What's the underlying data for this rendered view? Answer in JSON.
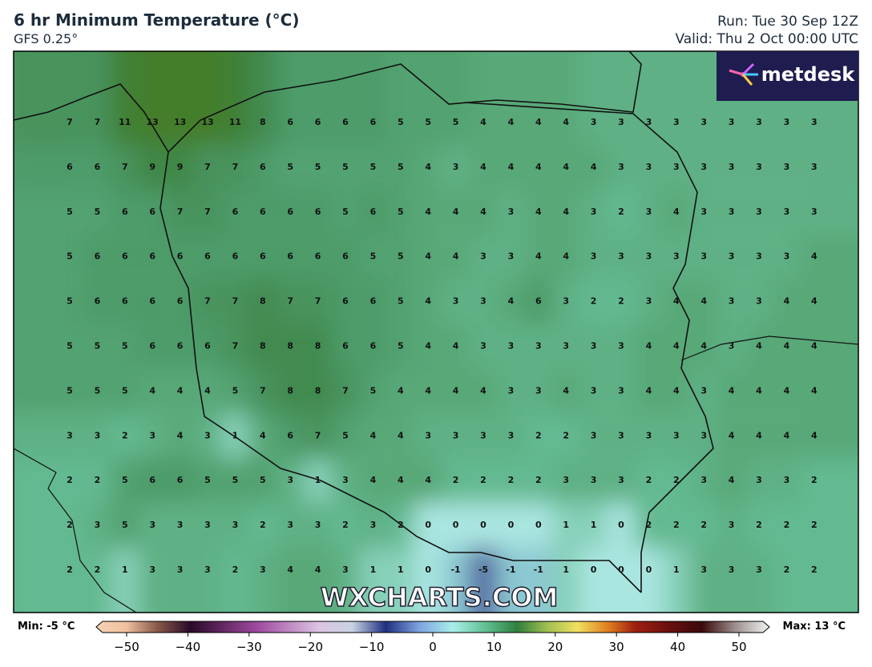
{
  "header": {
    "title": "6 hr Minimum Temperature (°C)",
    "model": "GFS 0.25°",
    "run": "Run: Tue 30 Sep 12Z",
    "valid": "Valid: Thu 2 Oct 00:00 UTC",
    "logo": "metdesk"
  },
  "watermark": "WXCHARTS.COM",
  "grid_values": [
    [
      7,
      7,
      11,
      13,
      13,
      13,
      11,
      8,
      6,
      6,
      6,
      6,
      5,
      5,
      5,
      4,
      4,
      4,
      4,
      3,
      3,
      3,
      3,
      3,
      3,
      3,
      3,
      3
    ],
    [
      6,
      6,
      7,
      9,
      9,
      7,
      7,
      6,
      5,
      5,
      5,
      5,
      5,
      4,
      3,
      4,
      4,
      4,
      4,
      4,
      3,
      3,
      3,
      3,
      3,
      3,
      3,
      3
    ],
    [
      5,
      5,
      6,
      6,
      7,
      7,
      6,
      6,
      6,
      6,
      5,
      6,
      5,
      4,
      4,
      4,
      3,
      4,
      4,
      3,
      2,
      3,
      4,
      3,
      3,
      3,
      3,
      3
    ],
    [
      5,
      6,
      6,
      6,
      6,
      6,
      6,
      6,
      6,
      6,
      6,
      5,
      5,
      4,
      4,
      3,
      3,
      4,
      4,
      3,
      3,
      3,
      3,
      3,
      3,
      3,
      3,
      4
    ],
    [
      5,
      6,
      6,
      6,
      6,
      7,
      7,
      8,
      7,
      7,
      6,
      6,
      5,
      4,
      3,
      3,
      4,
      6,
      3,
      2,
      2,
      3,
      4,
      4,
      3,
      3,
      4,
      4
    ],
    [
      5,
      5,
      5,
      6,
      6,
      6,
      7,
      8,
      8,
      8,
      6,
      6,
      5,
      4,
      4,
      3,
      3,
      3,
      3,
      3,
      3,
      4,
      4,
      4,
      3,
      4,
      4,
      4
    ],
    [
      5,
      5,
      5,
      4,
      4,
      4,
      5,
      7,
      8,
      8,
      7,
      5,
      4,
      4,
      4,
      4,
      3,
      3,
      4,
      3,
      3,
      4,
      4,
      3,
      4,
      4,
      4,
      4
    ],
    [
      3,
      3,
      2,
      3,
      4,
      3,
      1,
      4,
      6,
      7,
      5,
      4,
      4,
      3,
      3,
      3,
      3,
      2,
      2,
      3,
      3,
      3,
      3,
      3,
      4,
      4,
      4,
      4
    ],
    [
      2,
      2,
      5,
      6,
      6,
      5,
      5,
      5,
      3,
      1,
      3,
      4,
      4,
      4,
      2,
      2,
      2,
      2,
      3,
      3,
      3,
      2,
      2,
      3,
      4,
      3,
      3,
      2
    ],
    [
      2,
      3,
      5,
      3,
      3,
      3,
      3,
      2,
      3,
      3,
      2,
      3,
      2,
      0,
      0,
      0,
      0,
      0,
      1,
      1,
      0,
      2,
      2,
      2,
      3,
      2,
      2,
      2
    ],
    [
      2,
      2,
      1,
      3,
      3,
      3,
      2,
      3,
      4,
      4,
      3,
      1,
      1,
      0,
      -1,
      -5,
      -1,
      -1,
      1,
      0,
      0,
      0,
      1,
      3,
      3,
      3,
      2,
      2
    ]
  ],
  "colorbar": {
    "min_label": "Min: -5 °C",
    "max_label": "Max: 13 °C",
    "range": [
      -50,
      50
    ],
    "ticks": [
      {
        "value": -50,
        "label": "−50"
      },
      {
        "value": -40,
        "label": "−40"
      },
      {
        "value": -30,
        "label": "−30"
      },
      {
        "value": -20,
        "label": "−20"
      },
      {
        "value": -10,
        "label": "−10"
      },
      0,
      10,
      20,
      30,
      40,
      50
    ]
  }
}
